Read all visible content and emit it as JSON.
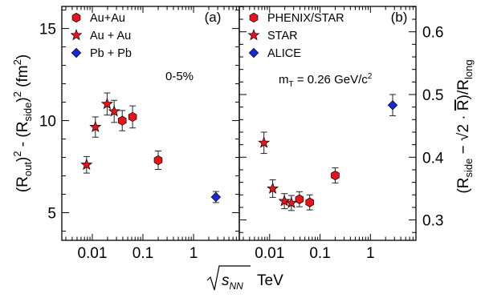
{
  "chart_data": [
    {
      "type": "scatter",
      "panel_label": "(a)",
      "annotation": "0-5%",
      "ylabel_parts": [
        "(R",
        "out",
        ")",
        "2",
        " - (R",
        "side",
        ")",
        "2",
        " (fm",
        "2",
        ")"
      ],
      "xlabel_sym": "s",
      "xlabel_sub": "NN",
      "xlabel_unit": "TeV",
      "xscale": "log",
      "xlim": [
        0.0025,
        8
      ],
      "ylim": [
        3.5,
        16.2
      ],
      "yticks": [
        5,
        10,
        15
      ],
      "xticks": [
        0.01,
        0.1,
        1
      ],
      "xtick_labels": [
        "0.01",
        "0.1",
        "1"
      ],
      "grid": false,
      "legend_position": "top-left",
      "series": [
        {
          "name": "Au+Au",
          "marker": "hexagon",
          "color": "#e8141b",
          "points": [
            {
              "x": 0.039,
              "y": 10.0,
              "err": 0.55
            },
            {
              "x": 0.0624,
              "y": 10.2,
              "err": 0.6
            },
            {
              "x": 0.2,
              "y": 7.85,
              "err": 0.5
            }
          ]
        },
        {
          "name": "Au + Au",
          "marker": "star",
          "color": "#e8141b",
          "points": [
            {
              "x": 0.0077,
              "y": 7.6,
              "err": 0.45
            },
            {
              "x": 0.0115,
              "y": 9.65,
              "err": 0.55
            },
            {
              "x": 0.0196,
              "y": 10.9,
              "err": 0.6
            },
            {
              "x": 0.027,
              "y": 10.5,
              "err": 0.6
            }
          ]
        },
        {
          "name": "Pb + Pb",
          "marker": "diamond",
          "color": "#1529d8",
          "points": [
            {
              "x": 2.76,
              "y": 5.85,
              "err": 0.3
            }
          ]
        }
      ]
    },
    {
      "type": "scatter",
      "panel_label": "(b)",
      "annotation_parts": [
        "m",
        "T",
        " = 0.26 GeV/c",
        "2"
      ],
      "ylabel_parts": [
        "(R",
        "side",
        " − ",
        "√2",
        " · ",
        "R",
        ")/R",
        "long"
      ],
      "yaxis_side": "right",
      "xscale": "log",
      "xlim": [
        0.0025,
        8
      ],
      "ylim": [
        0.2675,
        0.6405
      ],
      "yticks": [
        0.3,
        0.4,
        0.5,
        0.6
      ],
      "ytick_labels": [
        "0.3",
        "0.4",
        "0.5",
        "0.6"
      ],
      "xticks": [
        0.01,
        0.1,
        1
      ],
      "xtick_labels": [
        "0.01",
        "0.1",
        "1"
      ],
      "grid": false,
      "legend_position": "top-left",
      "series": [
        {
          "name": "PHENIX/STAR",
          "marker": "hexagon",
          "color": "#e8141b",
          "points": [
            {
              "x": 0.039,
              "y": 0.333,
              "err": 0.012
            },
            {
              "x": 0.0624,
              "y": 0.328,
              "err": 0.012
            },
            {
              "x": 0.2,
              "y": 0.371,
              "err": 0.012
            }
          ]
        },
        {
          "name": "STAR",
          "marker": "star",
          "color": "#e8141b",
          "points": [
            {
              "x": 0.0077,
              "y": 0.423,
              "err": 0.017
            },
            {
              "x": 0.0115,
              "y": 0.35,
              "err": 0.014
            },
            {
              "x": 0.0196,
              "y": 0.33,
              "err": 0.012
            },
            {
              "x": 0.027,
              "y": 0.327,
              "err": 0.012
            }
          ]
        },
        {
          "name": "ALICE",
          "marker": "diamond",
          "color": "#1529d8",
          "points": [
            {
              "x": 2.76,
              "y": 0.483,
              "err": 0.017
            }
          ]
        }
      ]
    }
  ]
}
